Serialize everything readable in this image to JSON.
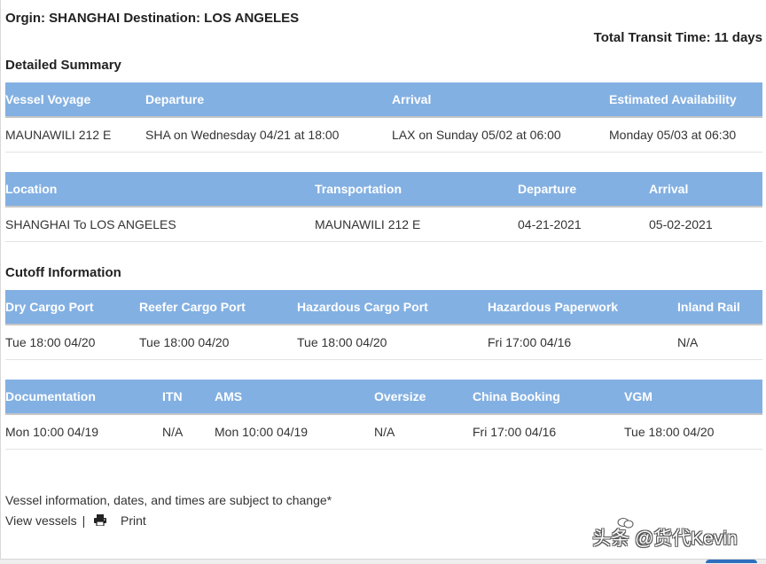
{
  "header": {
    "route": "Orgin: SHANGHAI Destination: LOS ANGELES",
    "transit": "Total Transit Time: 11 days"
  },
  "summary": {
    "heading": "Detailed Summary",
    "columns": [
      "Vessel Voyage",
      "Departure",
      "Arrival",
      "Estimated Availability"
    ],
    "row": [
      "MAUNAWILI 212 E",
      "SHA on Wednesday 04/21 at 18:00",
      "LAX on Sunday 05/02 at 06:00",
      "Monday 05/03 at 06:30"
    ]
  },
  "legs": {
    "columns": [
      "Location",
      "Transportation",
      "Departure",
      "Arrival"
    ],
    "row": [
      "SHANGHAI To LOS ANGELES",
      "MAUNAWILI 212 E",
      "04-21-2021",
      "05-02-2021"
    ]
  },
  "cutoff": {
    "heading": "Cutoff Information",
    "table1": {
      "columns": [
        "Dry Cargo Port",
        "Reefer Cargo Port",
        "Hazardous Cargo Port",
        "Hazardous Paperwork",
        "Inland Rail"
      ],
      "row": [
        "Tue 18:00 04/20",
        "Tue 18:00 04/20",
        "Tue 18:00 04/20",
        "Fri 17:00 04/16",
        "N/A"
      ]
    },
    "table2": {
      "columns": [
        "Documentation",
        "ITN",
        "AMS",
        "Oversize",
        "China Booking",
        "VGM"
      ],
      "row": [
        "Mon 10:00 04/19",
        "N/A",
        "Mon 10:00 04/19",
        "N/A",
        "Fri 17:00 04/16",
        "Tue 18:00 04/20"
      ]
    }
  },
  "footer": {
    "note": "Vessel information, dates, and times are subject to change*",
    "view_vessels": "View vessels",
    "separator": "|",
    "print": "Print",
    "print_icon": "printer-icon"
  },
  "watermark": "头条 @货代Kevin",
  "colors": {
    "header_bg": "#83b0e2",
    "header_text": "#ffffff"
  }
}
